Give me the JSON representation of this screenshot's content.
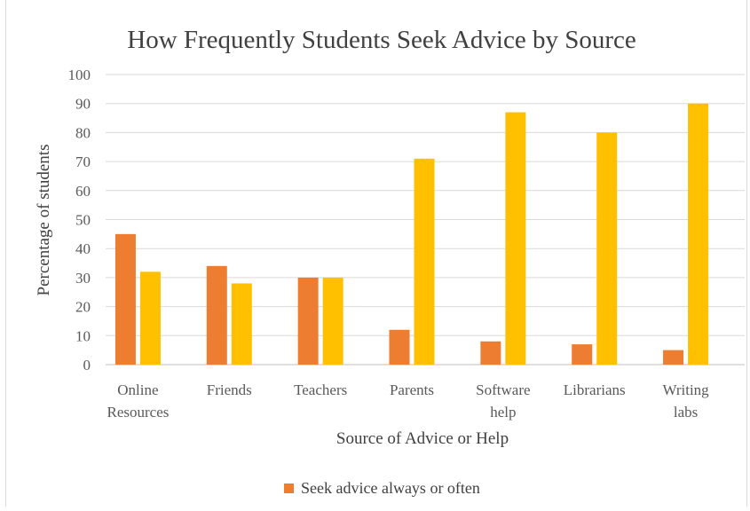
{
  "chart_data": {
    "type": "bar",
    "title": "How Frequently Students Seek Advice by Source",
    "xlabel": "Source of Advice or Help",
    "ylabel": "Percentage of students",
    "ylim": [
      0,
      100
    ],
    "yticks": [
      0,
      10,
      20,
      30,
      40,
      50,
      60,
      70,
      80,
      90,
      100
    ],
    "grid": true,
    "legend_position": "bottom",
    "categories": [
      [
        "Online",
        "Resources"
      ],
      [
        "Friends"
      ],
      [
        "Teachers"
      ],
      [
        "Parents"
      ],
      [
        "Software",
        "help"
      ],
      [
        "Librarians"
      ],
      [
        "Writing",
        "labs"
      ]
    ],
    "series": [
      {
        "name": "Seek advice always or often",
        "color": "#ED7D31",
        "values": [
          45,
          34,
          30,
          12,
          8,
          7,
          5
        ]
      },
      {
        "color": "#FFC000",
        "values": [
          32,
          28,
          30,
          71,
          87,
          80,
          90
        ]
      }
    ]
  }
}
